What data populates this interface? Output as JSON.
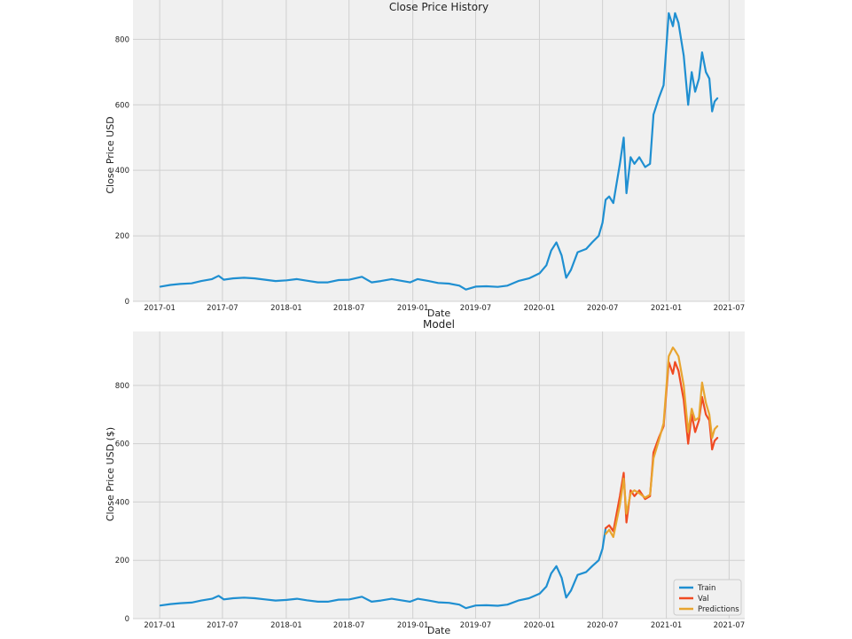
{
  "colors": {
    "train": "#1f8fd1",
    "val": "#f04a22",
    "predictions": "#e8a530",
    "panel": "#f0f0f0",
    "grid": "#d0d0d0"
  },
  "chart_data": [
    {
      "type": "line",
      "title": "Close Price History",
      "xlabel": "Date",
      "ylabel": "Close Price USD",
      "x_ticks": [
        "2017-01",
        "2017-07",
        "2018-01",
        "2018-07",
        "2019-01",
        "2019-07",
        "2020-01",
        "2020-07",
        "2021-01",
        "2021-07"
      ],
      "y_ticks": [
        "0",
        "200",
        "400",
        "600",
        "800"
      ],
      "xlim": [
        "2016-10-16",
        "2021-08-15"
      ],
      "ylim": [
        0,
        920
      ],
      "grid": true,
      "series": [
        {
          "color": "#1f8fd1",
          "points": [
            [
              "2017-01-03",
              45
            ],
            [
              "2017-02-01",
              50
            ],
            [
              "2017-03-01",
              53
            ],
            [
              "2017-04-03",
              55
            ],
            [
              "2017-05-01",
              62
            ],
            [
              "2017-06-01",
              68
            ],
            [
              "2017-06-20",
              78
            ],
            [
              "2017-07-05",
              66
            ],
            [
              "2017-08-01",
              70
            ],
            [
              "2017-09-01",
              72
            ],
            [
              "2017-10-02",
              70
            ],
            [
              "2017-11-01",
              66
            ],
            [
              "2017-12-01",
              62
            ],
            [
              "2018-01-02",
              64
            ],
            [
              "2018-02-01",
              68
            ],
            [
              "2018-03-01",
              63
            ],
            [
              "2018-04-02",
              58
            ],
            [
              "2018-05-01",
              58
            ],
            [
              "2018-06-01",
              65
            ],
            [
              "2018-07-02",
              66
            ],
            [
              "2018-08-07",
              75
            ],
            [
              "2018-09-04",
              58
            ],
            [
              "2018-10-01",
              62
            ],
            [
              "2018-11-01",
              68
            ],
            [
              "2018-12-24",
              58
            ],
            [
              "2019-01-15",
              68
            ],
            [
              "2019-02-15",
              62
            ],
            [
              "2019-03-15",
              56
            ],
            [
              "2019-04-15",
              54
            ],
            [
              "2019-05-15",
              48
            ],
            [
              "2019-06-03",
              36
            ],
            [
              "2019-07-01",
              45
            ],
            [
              "2019-08-01",
              46
            ],
            [
              "2019-09-03",
              44
            ],
            [
              "2019-10-01",
              48
            ],
            [
              "2019-11-01",
              62
            ],
            [
              "2019-12-02",
              70
            ],
            [
              "2020-01-02",
              86
            ],
            [
              "2020-01-21",
              110
            ],
            [
              "2020-02-04",
              155
            ],
            [
              "2020-02-19",
              180
            ],
            [
              "2020-03-05",
              140
            ],
            [
              "2020-03-18",
              72
            ],
            [
              "2020-04-01",
              96
            ],
            [
              "2020-04-20",
              150
            ],
            [
              "2020-05-15",
              160
            ],
            [
              "2020-06-01",
              180
            ],
            [
              "2020-06-20",
              200
            ],
            [
              "2020-07-01",
              240
            ],
            [
              "2020-07-10",
              310
            ],
            [
              "2020-07-20",
              320
            ],
            [
              "2020-08-01",
              300
            ],
            [
              "2020-08-20",
              420
            ],
            [
              "2020-08-31",
              500
            ],
            [
              "2020-09-08",
              330
            ],
            [
              "2020-09-20",
              440
            ],
            [
              "2020-10-01",
              420
            ],
            [
              "2020-10-15",
              440
            ],
            [
              "2020-11-01",
              410
            ],
            [
              "2020-11-15",
              420
            ],
            [
              "2020-11-25",
              570
            ],
            [
              "2020-12-10",
              620
            ],
            [
              "2020-12-24",
              660
            ],
            [
              "2021-01-08",
              880
            ],
            [
              "2021-01-20",
              840
            ],
            [
              "2021-01-26",
              880
            ],
            [
              "2021-02-05",
              850
            ],
            [
              "2021-02-20",
              750
            ],
            [
              "2021-03-05",
              600
            ],
            [
              "2021-03-15",
              700
            ],
            [
              "2021-03-25",
              640
            ],
            [
              "2021-04-05",
              680
            ],
            [
              "2021-04-14",
              760
            ],
            [
              "2021-04-25",
              700
            ],
            [
              "2021-05-05",
              680
            ],
            [
              "2021-05-13",
              580
            ],
            [
              "2021-05-20",
              610
            ],
            [
              "2021-05-28",
              620
            ]
          ]
        }
      ]
    },
    {
      "type": "line",
      "title": "Model",
      "xlabel": "Date",
      "ylabel": "Close Price USD ($)",
      "x_ticks": [
        "2017-01",
        "2017-07",
        "2018-01",
        "2018-07",
        "2019-01",
        "2019-07",
        "2020-01",
        "2020-07",
        "2021-01",
        "2021-07"
      ],
      "y_ticks": [
        "0",
        "200",
        "400",
        "600",
        "800"
      ],
      "xlim": [
        "2016-10-16",
        "2021-08-15"
      ],
      "ylim": [
        0,
        985
      ],
      "grid": true,
      "legend": {
        "placement": "lower-right",
        "entries": [
          "Train",
          "Val",
          "Predictions"
        ]
      },
      "series": [
        {
          "name": "Train",
          "color": "#1f8fd1",
          "points": [
            [
              "2017-01-03",
              45
            ],
            [
              "2017-02-01",
              50
            ],
            [
              "2017-03-01",
              53
            ],
            [
              "2017-04-03",
              55
            ],
            [
              "2017-05-01",
              62
            ],
            [
              "2017-06-01",
              68
            ],
            [
              "2017-06-20",
              78
            ],
            [
              "2017-07-05",
              66
            ],
            [
              "2017-08-01",
              70
            ],
            [
              "2017-09-01",
              72
            ],
            [
              "2017-10-02",
              70
            ],
            [
              "2017-11-01",
              66
            ],
            [
              "2017-12-01",
              62
            ],
            [
              "2018-01-02",
              64
            ],
            [
              "2018-02-01",
              68
            ],
            [
              "2018-03-01",
              63
            ],
            [
              "2018-04-02",
              58
            ],
            [
              "2018-05-01",
              58
            ],
            [
              "2018-06-01",
              65
            ],
            [
              "2018-07-02",
              66
            ],
            [
              "2018-08-07",
              75
            ],
            [
              "2018-09-04",
              58
            ],
            [
              "2018-10-01",
              62
            ],
            [
              "2018-11-01",
              68
            ],
            [
              "2018-12-24",
              58
            ],
            [
              "2019-01-15",
              68
            ],
            [
              "2019-02-15",
              62
            ],
            [
              "2019-03-15",
              56
            ],
            [
              "2019-04-15",
              54
            ],
            [
              "2019-05-15",
              48
            ],
            [
              "2019-06-03",
              36
            ],
            [
              "2019-07-01",
              45
            ],
            [
              "2019-08-01",
              46
            ],
            [
              "2019-09-03",
              44
            ],
            [
              "2019-10-01",
              48
            ],
            [
              "2019-11-01",
              62
            ],
            [
              "2019-12-02",
              70
            ],
            [
              "2020-01-02",
              86
            ],
            [
              "2020-01-21",
              110
            ],
            [
              "2020-02-04",
              155
            ],
            [
              "2020-02-19",
              180
            ],
            [
              "2020-03-05",
              140
            ],
            [
              "2020-03-18",
              72
            ],
            [
              "2020-04-01",
              96
            ],
            [
              "2020-04-20",
              150
            ],
            [
              "2020-05-15",
              160
            ],
            [
              "2020-06-01",
              180
            ],
            [
              "2020-06-20",
              200
            ],
            [
              "2020-07-01",
              240
            ],
            [
              "2020-07-10",
              310
            ]
          ]
        },
        {
          "name": "Val",
          "color": "#f04a22",
          "points": [
            [
              "2020-07-10",
              310
            ],
            [
              "2020-07-20",
              320
            ],
            [
              "2020-08-01",
              300
            ],
            [
              "2020-08-20",
              420
            ],
            [
              "2020-08-31",
              500
            ],
            [
              "2020-09-08",
              330
            ],
            [
              "2020-09-20",
              440
            ],
            [
              "2020-10-01",
              420
            ],
            [
              "2020-10-15",
              440
            ],
            [
              "2020-11-01",
              410
            ],
            [
              "2020-11-15",
              420
            ],
            [
              "2020-11-25",
              570
            ],
            [
              "2020-12-10",
              620
            ],
            [
              "2020-12-24",
              660
            ],
            [
              "2021-01-08",
              880
            ],
            [
              "2021-01-20",
              840
            ],
            [
              "2021-01-26",
              880
            ],
            [
              "2021-02-05",
              850
            ],
            [
              "2021-02-20",
              750
            ],
            [
              "2021-03-05",
              600
            ],
            [
              "2021-03-15",
              700
            ],
            [
              "2021-03-25",
              640
            ],
            [
              "2021-04-05",
              680
            ],
            [
              "2021-04-14",
              760
            ],
            [
              "2021-04-25",
              700
            ],
            [
              "2021-05-05",
              680
            ],
            [
              "2021-05-13",
              580
            ],
            [
              "2021-05-20",
              610
            ],
            [
              "2021-05-28",
              620
            ]
          ]
        },
        {
          "name": "Predictions",
          "color": "#e8a530",
          "points": [
            [
              "2020-07-10",
              290
            ],
            [
              "2020-07-20",
              305
            ],
            [
              "2020-08-01",
              280
            ],
            [
              "2020-08-20",
              390
            ],
            [
              "2020-08-31",
              480
            ],
            [
              "2020-09-08",
              360
            ],
            [
              "2020-09-20",
              430
            ],
            [
              "2020-10-01",
              440
            ],
            [
              "2020-10-15",
              430
            ],
            [
              "2020-11-01",
              415
            ],
            [
              "2020-11-15",
              425
            ],
            [
              "2020-11-25",
              550
            ],
            [
              "2020-12-10",
              610
            ],
            [
              "2020-12-24",
              670
            ],
            [
              "2021-01-08",
              900
            ],
            [
              "2021-01-20",
              930
            ],
            [
              "2021-01-26",
              920
            ],
            [
              "2021-02-05",
              900
            ],
            [
              "2021-02-20",
              800
            ],
            [
              "2021-03-05",
              640
            ],
            [
              "2021-03-15",
              720
            ],
            [
              "2021-03-25",
              680
            ],
            [
              "2021-04-05",
              690
            ],
            [
              "2021-04-14",
              810
            ],
            [
              "2021-04-25",
              740
            ],
            [
              "2021-05-05",
              700
            ],
            [
              "2021-05-13",
              620
            ],
            [
              "2021-05-20",
              650
            ],
            [
              "2021-05-28",
              660
            ]
          ]
        }
      ]
    }
  ]
}
